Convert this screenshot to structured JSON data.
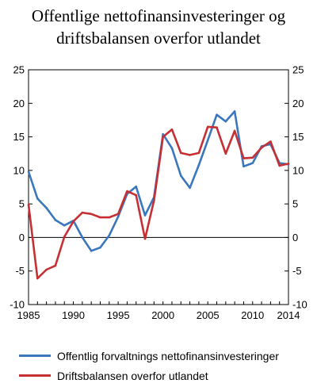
{
  "title": {
    "line1": "Offentlige nettofinansinvesteringer og",
    "line2": "driftsbalansen overfor utlandet"
  },
  "chart_data": {
    "type": "line",
    "title": "Offentlige nettofinansinvesteringer og driftsbalansen overfor utlandet",
    "xlabel": "",
    "ylabel": "",
    "xlim": [
      1985,
      2014
    ],
    "ylim": [
      -10,
      25
    ],
    "x_ticks": [
      1985,
      1990,
      1995,
      2000,
      2005,
      2010,
      2014
    ],
    "y_ticks": [
      -10,
      -5,
      0,
      5,
      10,
      15,
      20,
      25
    ],
    "y_axis_both_sides": true,
    "grid": false,
    "legend_position": "bottom",
    "x": [
      1985,
      1986,
      1987,
      1988,
      1989,
      1990,
      1991,
      1992,
      1993,
      1994,
      1995,
      1996,
      1997,
      1998,
      1999,
      2000,
      2001,
      2002,
      2003,
      2004,
      2005,
      2006,
      2007,
      2008,
      2009,
      2010,
      2011,
      2012,
      2013,
      2014
    ],
    "series": [
      {
        "name": "Offentlig forvaltnings nettofinansinvesteringer",
        "color": "#3a77bd",
        "values": [
          9.8,
          5.8,
          4.4,
          2.6,
          1.8,
          2.5,
          0.0,
          -2.0,
          -1.5,
          0.3,
          3.1,
          6.5,
          7.6,
          3.3,
          6.0,
          15.4,
          13.3,
          9.2,
          7.4,
          10.8,
          14.5,
          18.3,
          17.3,
          18.8,
          10.6,
          11.1,
          13.6,
          13.9,
          11.1,
          10.9
        ]
      },
      {
        "name": "Driftsbalansen overfor utlandet",
        "color": "#c62f33",
        "values": [
          4.9,
          -6.1,
          -4.8,
          -4.2,
          0.1,
          2.4,
          3.7,
          3.5,
          3.0,
          3.0,
          3.5,
          6.9,
          6.3,
          -0.2,
          5.5,
          15.0,
          16.1,
          12.6,
          12.3,
          12.6,
          16.5,
          16.4,
          12.5,
          15.9,
          11.8,
          11.9,
          13.4,
          14.3,
          10.7,
          11.0
        ]
      }
    ]
  }
}
